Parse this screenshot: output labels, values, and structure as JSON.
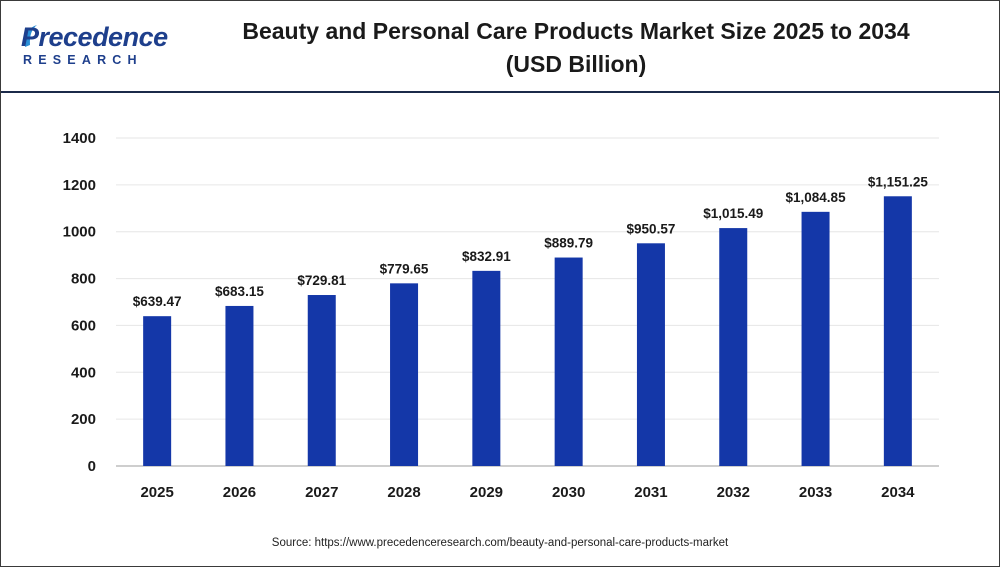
{
  "header": {
    "logo_main": "Precedence",
    "logo_sub": "RESEARCH",
    "title_line1": "Beauty and Personal Care Products Market Size 2025 to 2034",
    "title_line2": "(USD Billion)"
  },
  "source_text": "Source: https://www.precedenceresearch.com/beauty-and-personal-care-products-market",
  "colors": {
    "bar": "#1437a8",
    "brand": "#1e3f8c",
    "grid": "#e6e6e6",
    "axis": "#b0b0b0"
  },
  "chart_data": {
    "type": "bar",
    "title": "Beauty and Personal Care Products Market Size 2025 to 2034 (USD Billion)",
    "xlabel": "",
    "ylabel": "",
    "categories": [
      "2025",
      "2026",
      "2027",
      "2028",
      "2029",
      "2030",
      "2031",
      "2032",
      "2033",
      "2034"
    ],
    "values": [
      639.47,
      683.15,
      729.81,
      779.65,
      832.91,
      889.79,
      950.57,
      1015.49,
      1084.85,
      1151.25
    ],
    "value_labels": [
      "$639.47",
      "$683.15",
      "$729.81",
      "$779.65",
      "$832.91",
      "$889.79",
      "$950.57",
      "$1,015.49",
      "$1,084.85",
      "$1,151.25"
    ],
    "ylim": [
      0,
      1400
    ],
    "yticks": [
      0,
      200,
      400,
      600,
      800,
      1000,
      1200,
      1400
    ],
    "grid": true,
    "legend": "none"
  }
}
